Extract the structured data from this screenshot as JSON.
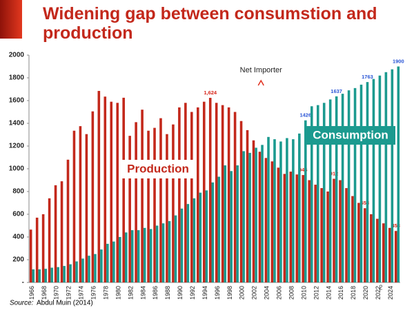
{
  "chart_data": {
    "type": "bar",
    "title_lines": [
      "Widening gap between consumstion and",
      "production"
    ],
    "categories": [
      "1966",
      null,
      "1968",
      null,
      "1970",
      null,
      "1972",
      null,
      "1974",
      null,
      "1976",
      null,
      "1978",
      null,
      "1980",
      null,
      "1982",
      null,
      "1984",
      null,
      "1986",
      null,
      "1988",
      null,
      "1990",
      null,
      "1992",
      null,
      "1994",
      null,
      "1996",
      null,
      "1998",
      null,
      "2000",
      null,
      "2002",
      null,
      "2004",
      null,
      "2006",
      null,
      "2008",
      null,
      "2010",
      null,
      "2012",
      null,
      "2014",
      null,
      "2016",
      null,
      "2018",
      null,
      "2020",
      null,
      "2022",
      null,
      "2024",
      null
    ],
    "series": [
      {
        "name": "Production",
        "color": "#c3281b",
        "label_color": "#d8261a",
        "values": [
          465,
          570,
          600,
          740,
          855,
          890,
          1080,
          1335,
          1375,
          1305,
          1505,
          1685,
          1635,
          1590,
          1580,
          1625,
          1290,
          1410,
          1520,
          1335,
          1360,
          1445,
          1305,
          1390,
          1540,
          1580,
          1500,
          1540,
          1590,
          1624,
          1580,
          1560,
          1540,
          1500,
          1420,
          1340,
          1250,
          1150,
          1095,
          1065,
          1010,
          955,
          975,
          950,
          945,
          900,
          860,
          830,
          800,
          912,
          900,
          830,
          760,
          700,
          653,
          600,
          560,
          520,
          480,
          453
        ],
        "value_labels": [
          null,
          null,
          null,
          null,
          null,
          null,
          null,
          null,
          null,
          null,
          null,
          null,
          null,
          null,
          null,
          null,
          null,
          null,
          null,
          null,
          null,
          null,
          null,
          null,
          null,
          null,
          null,
          null,
          null,
          "1,624",
          null,
          null,
          null,
          null,
          null,
          null,
          null,
          null,
          null,
          null,
          null,
          null,
          null,
          null,
          "945",
          null,
          null,
          null,
          null,
          "912",
          null,
          null,
          null,
          null,
          "653",
          null,
          null,
          null,
          null,
          "453"
        ]
      },
      {
        "name": "Consumption",
        "color": "#1b9a8f",
        "label_color": "#2a56d6",
        "values": [
          115,
          115,
          120,
          130,
          135,
          145,
          160,
          185,
          210,
          235,
          250,
          290,
          340,
          360,
          400,
          440,
          460,
          460,
          480,
          470,
          500,
          520,
          540,
          590,
          650,
          690,
          740,
          790,
          810,
          880,
          930,
          1030,
          980,
          1030,
          1155,
          1140,
          1185,
          1210,
          1280,
          1260,
          1240,
          1270,
          1260,
          1310,
          1426,
          1550,
          1560,
          1580,
          1610,
          1637,
          1660,
          1690,
          1710,
          1740,
          1763,
          1790,
          1820,
          1850,
          1875,
          1900
        ],
        "value_labels": [
          null,
          null,
          null,
          null,
          null,
          null,
          null,
          null,
          null,
          null,
          null,
          null,
          null,
          null,
          null,
          null,
          null,
          null,
          null,
          null,
          null,
          null,
          null,
          null,
          null,
          null,
          null,
          null,
          null,
          null,
          null,
          null,
          null,
          null,
          null,
          null,
          null,
          null,
          null,
          null,
          null,
          null,
          null,
          null,
          "1426",
          null,
          null,
          null,
          null,
          "1637",
          null,
          null,
          null,
          null,
          "1763",
          null,
          null,
          null,
          null,
          "1900"
        ]
      }
    ],
    "ylim": [
      0,
      2000
    ],
    "yticks": [
      {
        "value": 0,
        "label": "-"
      },
      200,
      400,
      600,
      800,
      1000,
      1200,
      1400,
      1600,
      1800,
      2000
    ],
    "grid": false,
    "annotation": "Net Importer",
    "source_prefix": "Source:",
    "source": "Abdul Muin (2014)",
    "slide_number": "2"
  }
}
